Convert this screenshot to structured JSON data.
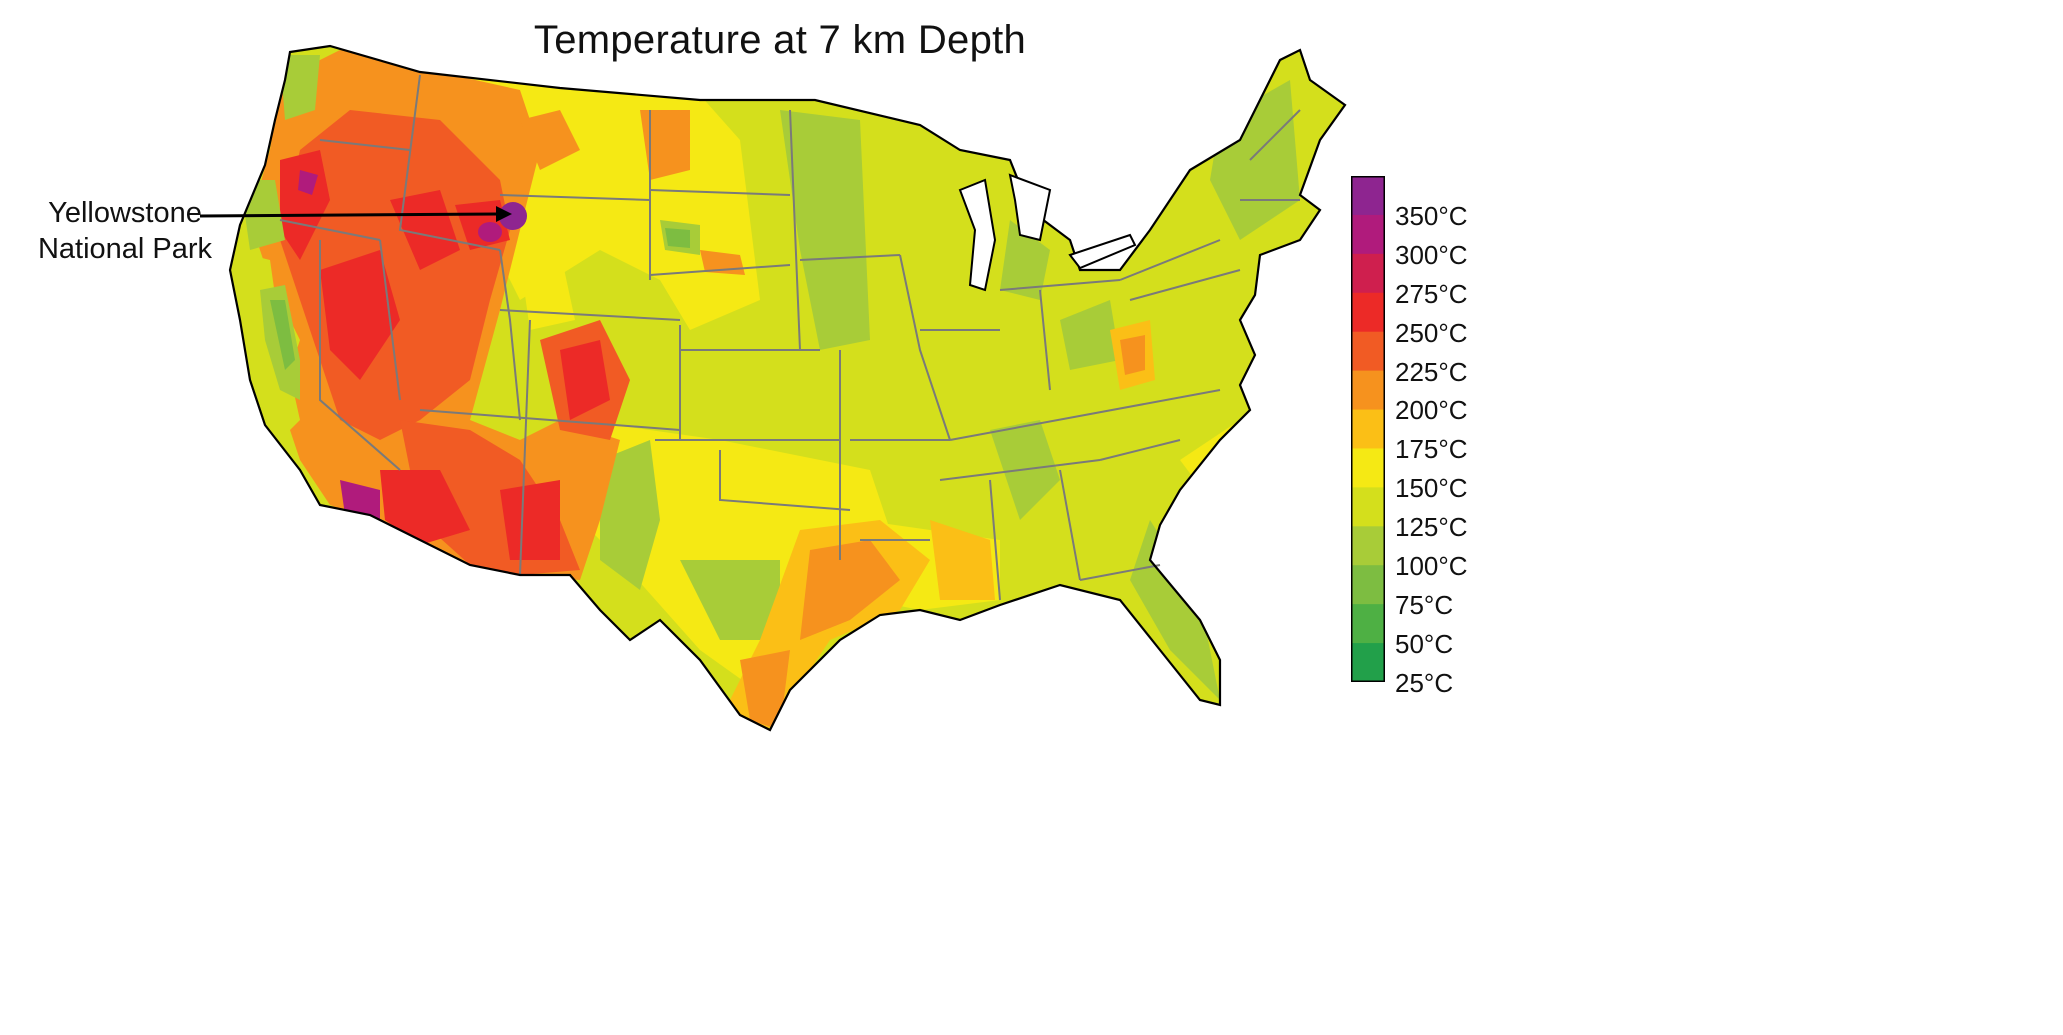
{
  "title": "Temperature at 7 km Depth",
  "annotation": {
    "line1": "Yellowstone",
    "line2": "National Park"
  },
  "legend": {
    "labels": [
      "350°C",
      "300°C",
      "275°C",
      "250°C",
      "225°C",
      "200°C",
      "175°C",
      "150°C",
      "125°C",
      "100°C",
      "75°C",
      "50°C",
      "25°C"
    ],
    "colors": [
      "#8e2590",
      "#b01b7c",
      "#cf1f4e",
      "#ec2a27",
      "#f15b24",
      "#f6921e",
      "#fbbf16",
      "#f5e914",
      "#d4df1c",
      "#a8cc38",
      "#7dbd41",
      "#4eb044",
      "#22a04a"
    ]
  },
  "colors": {
    "border_line": "#7a7a7a",
    "coast_line": "#000000",
    "arrow": "#000000"
  }
}
